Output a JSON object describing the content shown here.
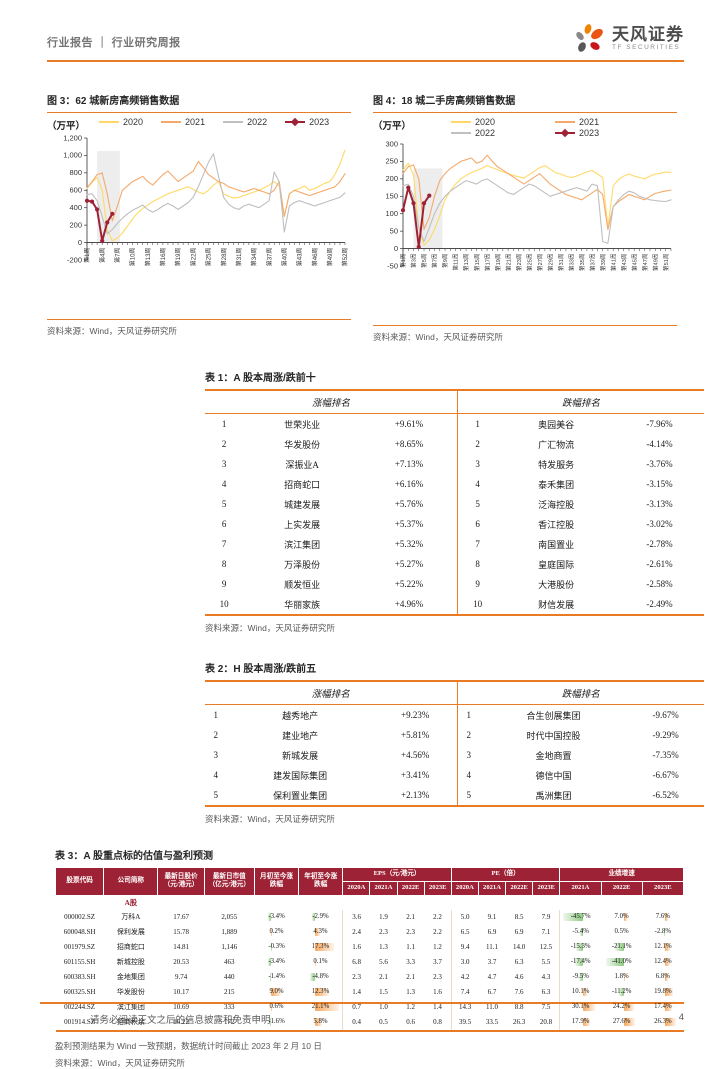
{
  "header": {
    "report_type": "行业报告",
    "divider": "｜",
    "report_subtype": "行业研究周报",
    "brand_cn": "天风证券",
    "brand_en": "TF SECURITIES"
  },
  "colors": {
    "accent": "#E87B23",
    "maroon": "#9E2235",
    "series": {
      "2020": "#FFD966",
      "2021": "#F4A96B",
      "2022": "#BFBFBF",
      "2023": "#9E2235"
    },
    "bar_positive": "#F6A75C",
    "bar_negative": "#8CC97F",
    "band": "#EDEDED"
  },
  "figure3": {
    "title": "图 3：62 城新房高频销售数据",
    "unit": "（万平）",
    "source": "资料来源：Wind，天风证券研究所"
  },
  "figure4": {
    "title": "图 4：18 城二手房高频销售数据",
    "unit": "（万平）",
    "source": "资料来源：Wind，天风证券研究所"
  },
  "chart_data": [
    {
      "type": "line",
      "title": "62城新房高频销售数据",
      "ylabel": "万平",
      "ylim": [
        -200,
        1200
      ],
      "y_step": 200,
      "n_weeks": 52,
      "x_tick_step": 3,
      "x_tick_labels": [
        "第1周",
        "第4周",
        "第7周",
        "第10周",
        "第13周",
        "第16周",
        "第19周",
        "第22周",
        "第25周",
        "第28周",
        "第31周",
        "第34周",
        "第37周",
        "第40周",
        "第43周",
        "第46周",
        "第49周",
        "第52周"
      ],
      "band": {
        "from": 3,
        "to": 7.5,
        "top": 1050
      },
      "legend_position": "top",
      "series": [
        {
          "name": "2020",
          "values": [
            620,
            690,
            750,
            600,
            150,
            20,
            50,
            110,
            190,
            270,
            340,
            390,
            430,
            470,
            500,
            530,
            560,
            580,
            600,
            620,
            640,
            610,
            580,
            560,
            600,
            660,
            700,
            560,
            530,
            510,
            520,
            540,
            560,
            580,
            600,
            630,
            660,
            700,
            650,
            300,
            560,
            600,
            620,
            650,
            600,
            620,
            650,
            680,
            700,
            780,
            900,
            1060
          ]
        },
        {
          "name": "2021",
          "values": [
            630,
            700,
            780,
            800,
            560,
            250,
            420,
            600,
            650,
            700,
            730,
            760,
            700,
            660,
            720,
            780,
            820,
            760,
            700,
            740,
            780,
            820,
            930,
            860,
            780,
            740,
            700,
            680,
            640,
            620,
            600,
            580,
            600,
            620,
            600,
            580,
            560,
            600,
            700,
            300,
            560,
            600,
            580,
            560,
            540,
            560,
            580,
            600,
            620,
            640,
            700,
            790
          ]
        },
        {
          "name": "2022",
          "values": [
            550,
            560,
            480,
            300,
            100,
            150,
            220,
            280,
            330,
            370,
            400,
            430,
            380,
            350,
            380,
            420,
            450,
            420,
            380,
            420,
            460,
            520,
            640,
            780,
            920,
            1020,
            760,
            520,
            440,
            400,
            380,
            420,
            440,
            420,
            400,
            440,
            480,
            810,
            700,
            120,
            420,
            460,
            480,
            460,
            440,
            420,
            440,
            460,
            480,
            500,
            520,
            570
          ]
        },
        {
          "name": "2023",
          "values": [
            480,
            470,
            380,
            20,
            230,
            330
          ],
          "markers": true
        }
      ]
    },
    {
      "type": "line",
      "title": "18城二手房高频销售数据",
      "ylabel": "万平",
      "ylim": [
        -50,
        300
      ],
      "y_step": 50,
      "n_weeks": 52,
      "x_tick_step": 2,
      "x_tick_labels": [
        "第1周",
        "第3周",
        "第5周",
        "第7周",
        "第9周",
        "第11周",
        "第13周",
        "第15周",
        "第17周",
        "第19周",
        "第21周",
        "第23周",
        "第25周",
        "第27周",
        "第29周",
        "第31周",
        "第33周",
        "第35周",
        "第37周",
        "第39周",
        "第41周",
        "第43周",
        "第45周",
        "第47周",
        "第49周",
        "第51周"
      ],
      "band": {
        "from": 3,
        "to": 8.5,
        "top": 230
      },
      "legend_position": "top",
      "series": [
        {
          "name": "2020",
          "values": [
            225,
            245,
            210,
            60,
            10,
            25,
            55,
            95,
            140,
            165,
            185,
            200,
            210,
            218,
            224,
            230,
            238,
            232,
            226,
            220,
            215,
            210,
            206,
            202,
            212,
            222,
            232,
            238,
            228,
            218,
            214,
            208,
            204,
            208,
            214,
            220,
            224,
            214,
            204,
            60,
            180,
            198,
            208,
            214,
            208,
            204,
            200,
            208,
            214,
            216,
            220,
            218
          ]
        },
        {
          "name": "2021",
          "values": [
            215,
            235,
            240,
            200,
            55,
            90,
            150,
            195,
            215,
            230,
            240,
            250,
            255,
            260,
            245,
            250,
            268,
            250,
            235,
            225,
            215,
            205,
            195,
            185,
            195,
            205,
            215,
            200,
            185,
            175,
            165,
            155,
            150,
            145,
            140,
            150,
            160,
            170,
            155,
            55,
            120,
            135,
            145,
            155,
            150,
            145,
            140,
            150,
            158,
            162,
            165,
            168
          ]
        },
        {
          "name": "2022",
          "values": [
            180,
            185,
            150,
            60,
            20,
            60,
            100,
            130,
            150,
            165,
            175,
            185,
            195,
            190,
            185,
            195,
            200,
            190,
            180,
            170,
            160,
            155,
            165,
            175,
            185,
            180,
            170,
            160,
            150,
            155,
            160,
            165,
            170,
            175,
            170,
            165,
            185,
            180,
            20,
            15,
            120,
            140,
            155,
            165,
            160,
            150,
            145,
            140,
            138,
            136,
            135,
            140
          ]
        },
        {
          "name": "2023",
          "values": [
            110,
            175,
            130,
            5,
            130,
            152
          ],
          "markers": true
        }
      ]
    }
  ],
  "table1": {
    "title": "表 1：A 股本周涨/跌前十",
    "gain_header": "涨幅排名",
    "loss_header": "跌幅排名",
    "gainers": [
      {
        "rank": "1",
        "name": "世荣兆业",
        "pct": "+9.61%"
      },
      {
        "rank": "2",
        "name": "华发股份",
        "pct": "+8.65%"
      },
      {
        "rank": "3",
        "name": "深振业A",
        "pct": "+7.13%"
      },
      {
        "rank": "4",
        "name": "招商蛇口",
        "pct": "+6.16%"
      },
      {
        "rank": "5",
        "name": "城建发展",
        "pct": "+5.76%"
      },
      {
        "rank": "6",
        "name": "上实发展",
        "pct": "+5.37%"
      },
      {
        "rank": "7",
        "name": "滨江集团",
        "pct": "+5.32%"
      },
      {
        "rank": "8",
        "name": "万泽股份",
        "pct": "+5.27%"
      },
      {
        "rank": "9",
        "name": "顺发恒业",
        "pct": "+5.22%"
      },
      {
        "rank": "10",
        "name": "华丽家族",
        "pct": "+4.96%"
      }
    ],
    "losers": [
      {
        "rank": "1",
        "name": "奥园美谷",
        "pct": "-7.96%"
      },
      {
        "rank": "2",
        "name": "广汇物流",
        "pct": "-4.14%"
      },
      {
        "rank": "3",
        "name": "特发服务",
        "pct": "-3.76%"
      },
      {
        "rank": "4",
        "name": "泰禾集团",
        "pct": "-3.15%"
      },
      {
        "rank": "5",
        "name": "泛海控股",
        "pct": "-3.13%"
      },
      {
        "rank": "6",
        "name": "香江控股",
        "pct": "-3.02%"
      },
      {
        "rank": "7",
        "name": "南国置业",
        "pct": "-2.78%"
      },
      {
        "rank": "8",
        "name": "皇庭国际",
        "pct": "-2.61%"
      },
      {
        "rank": "9",
        "name": "大港股份",
        "pct": "-2.58%"
      },
      {
        "rank": "10",
        "name": "财信发展",
        "pct": "-2.49%"
      }
    ],
    "source": "资料来源：Wind，天风证券研究所"
  },
  "table2": {
    "title": "表 2：H 股本周涨/跌前五",
    "gain_header": "涨幅排名",
    "loss_header": "跌幅排名",
    "gainers": [
      {
        "rank": "1",
        "name": "越秀地产",
        "pct": "+9.23%"
      },
      {
        "rank": "2",
        "name": "建业地产",
        "pct": "+5.81%"
      },
      {
        "rank": "3",
        "name": "新城发展",
        "pct": "+4.56%"
      },
      {
        "rank": "4",
        "name": "建发国际集团",
        "pct": "+3.41%"
      },
      {
        "rank": "5",
        "name": "保利置业集团",
        "pct": "+2.13%"
      }
    ],
    "losers": [
      {
        "rank": "1",
        "name": "合生创展集团",
        "pct": "-9.67%"
      },
      {
        "rank": "2",
        "name": "时代中国控股",
        "pct": "-9.29%"
      },
      {
        "rank": "3",
        "name": "金地商置",
        "pct": "-7.35%"
      },
      {
        "rank": "4",
        "name": "德信中国",
        "pct": "-6.67%"
      },
      {
        "rank": "5",
        "name": "禹洲集团",
        "pct": "-6.52%"
      }
    ],
    "source": "资料来源：Wind，天风证券研究所"
  },
  "table3": {
    "title": "表 3：A 股重点标的估值与盈利预测",
    "col_headers": {
      "code": "股票代码",
      "name": "公司简称",
      "price": "最新日股价\n（元/港元）",
      "mktcap": "最新日市值\n（亿元/港元）",
      "mtd": "月初至今涨\n跌幅",
      "ytd": "年初至今涨\n跌幅",
      "eps_group": "EPS（元/港元）",
      "pe_group": "PE（倍）",
      "growth_group": "业绩增速",
      "eps_years": [
        "2020A",
        "2021A",
        "2022E",
        "2023E"
      ],
      "pe_years": [
        "2020A",
        "2021A",
        "2022E",
        "2023E"
      ],
      "growth_years": [
        "2021A",
        "2022E",
        "2023E"
      ]
    },
    "section_label": "A股",
    "rows": [
      {
        "code": "000002.SZ",
        "name": "万科A",
        "price": "17.67",
        "mktcap": "2,055",
        "mtd": "-3.4%",
        "ytd": "-2.9%",
        "eps": [
          "3.6",
          "1.9",
          "2.1",
          "2.2"
        ],
        "pe": [
          "5.0",
          "9.1",
          "8.5",
          "7.9"
        ],
        "growth": [
          "-45.7%",
          "7.0%",
          "7.6%"
        ]
      },
      {
        "code": "600048.SH",
        "name": "保利发展",
        "price": "15.78",
        "mktcap": "1,889",
        "mtd": "0.2%",
        "ytd": "4.3%",
        "eps": [
          "2.4",
          "2.3",
          "2.3",
          "2.2"
        ],
        "pe": [
          "6.5",
          "6.9",
          "6.9",
          "7.1"
        ],
        "growth": [
          "-5.4%",
          "0.5%",
          "-2.8%"
        ]
      },
      {
        "code": "001979.SZ",
        "name": "招商蛇口",
        "price": "14.81",
        "mktcap": "1,146",
        "mtd": "-0.3%",
        "ytd": "17.3%",
        "eps": [
          "1.6",
          "1.3",
          "1.1",
          "1.2"
        ],
        "pe": [
          "9.4",
          "11.1",
          "14.0",
          "12.5"
        ],
        "growth": [
          "-15.3%",
          "-21.1%",
          "12.1%"
        ]
      },
      {
        "code": "601155.SH",
        "name": "新城控股",
        "price": "20.53",
        "mktcap": "463",
        "mtd": "-3.4%",
        "ytd": "0.1%",
        "eps": [
          "6.8",
          "5.6",
          "3.3",
          "3.7"
        ],
        "pe": [
          "3.0",
          "3.7",
          "6.3",
          "5.5"
        ],
        "growth": [
          "-17.4%",
          "-41.0%",
          "12.4%"
        ]
      },
      {
        "code": "600383.SH",
        "name": "金地集团",
        "price": "9.74",
        "mktcap": "440",
        "mtd": "-1.4%",
        "ytd": "-4.8%",
        "eps": [
          "2.3",
          "2.1",
          "2.1",
          "2.3"
        ],
        "pe": [
          "4.2",
          "4.7",
          "4.6",
          "4.3"
        ],
        "growth": [
          "-9.5%",
          "1.8%",
          "6.8%"
        ]
      },
      {
        "code": "600325.SH",
        "name": "华发股份",
        "price": "10.17",
        "mktcap": "215",
        "mtd": "9.0%",
        "ytd": "12.3%",
        "eps": [
          "1.4",
          "1.5",
          "1.3",
          "1.6"
        ],
        "pe": [
          "7.4",
          "6.7",
          "7.6",
          "6.3"
        ],
        "growth": [
          "10.1%",
          "-11.2%",
          "19.8%"
        ]
      },
      {
        "code": "002244.SZ",
        "name": "滨江集团",
        "price": "10.69",
        "mktcap": "333",
        "mtd": "0.6%",
        "ytd": "21.1%",
        "eps": [
          "0.7",
          "1.0",
          "1.2",
          "1.4"
        ],
        "pe": [
          "14.3",
          "11.0",
          "8.8",
          "7.5"
        ],
        "growth": [
          "30.1%",
          "24.2%",
          "17.4%"
        ]
      },
      {
        "code": "001914.SZ",
        "name": "招商积余",
        "price": "16.22",
        "mktcap": "172",
        "mtd": "-1.6%",
        "ytd": "5.8%",
        "eps": [
          "0.4",
          "0.5",
          "0.6",
          "0.8"
        ],
        "pe": [
          "39.5",
          "33.5",
          "26.3",
          "20.8"
        ],
        "growth": [
          "17.9%",
          "27.6%",
          "26.3%"
        ]
      }
    ],
    "note": "盈利预测结果为 Wind 一致预期，数据统计时间截止 2023 年 2 月 10 日",
    "source": "资料来源：Wind，天风证券研究所"
  },
  "footer": {
    "disclaimer": "请务必阅读正文之后的信息披露和免责申明",
    "page": "4"
  }
}
